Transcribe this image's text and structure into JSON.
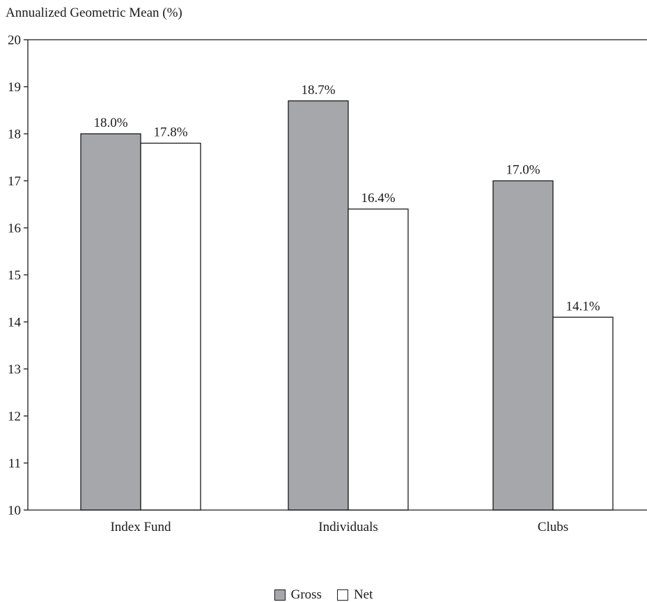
{
  "chart_data": {
    "type": "bar",
    "ylabel": "Annualized Geometric Mean (%)",
    "xlabel": "",
    "categories": [
      "Index Fund",
      "Individuals",
      "Clubs"
    ],
    "series": [
      {
        "name": "Gross",
        "values": [
          18.0,
          18.7,
          17.0
        ],
        "labels": [
          "18.0%",
          "18.7%",
          "17.0%"
        ],
        "color": "#a6a7ab"
      },
      {
        "name": "Net",
        "values": [
          17.8,
          16.4,
          14.1
        ],
        "labels": [
          "17.8%",
          "16.4%",
          "14.1%"
        ],
        "color": "#ffffff"
      }
    ],
    "ylim": [
      10,
      20
    ],
    "yticks": [
      10,
      11,
      12,
      13,
      14,
      15,
      16,
      17,
      18,
      19,
      20
    ],
    "grid": false,
    "legend": "bottom-center"
  }
}
